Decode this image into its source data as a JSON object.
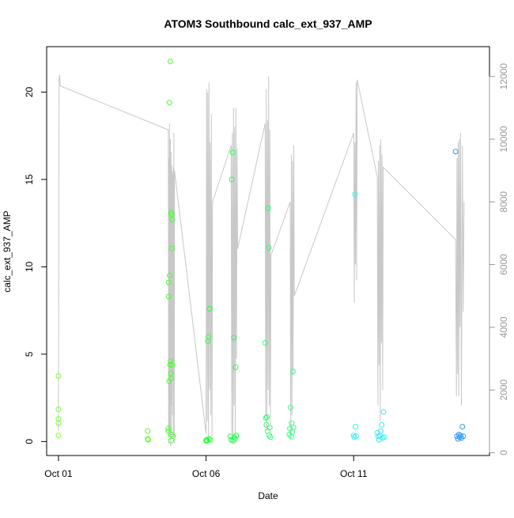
{
  "chart_data": {
    "type": "scatter",
    "title": "ATOM3 Southbound calc_ext_937_AMP",
    "xlabel": "Date",
    "ylabel": "calc_ext_937_AMP",
    "x_unit": "day",
    "x_ticks": [
      {
        "value": 1,
        "label": "Oct 01"
      },
      {
        "value": 6,
        "label": "Oct 06"
      },
      {
        "value": 11,
        "label": "Oct 11"
      }
    ],
    "xlim": [
      0.6,
      15.6
    ],
    "ylim": [
      -0.8,
      22.6
    ],
    "y_ticks": [
      0,
      5,
      10,
      15,
      20
    ],
    "y2lim": [
      -90,
      12950
    ],
    "y2_ticks": [
      0,
      2000,
      4000,
      6000,
      8000,
      10000,
      12000
    ],
    "grid": false,
    "legend": "none",
    "points": [
      {
        "x": 1.0,
        "y": 3.75,
        "color": "#7dff3a"
      },
      {
        "x": 1.0,
        "y": 1.85,
        "color": "#7dff3a"
      },
      {
        "x": 1.0,
        "y": 1.3,
        "color": "#7dff3a"
      },
      {
        "x": 1.0,
        "y": 1.05,
        "color": "#7dff3a"
      },
      {
        "x": 1.0,
        "y": 0.35,
        "color": "#7dff3a"
      },
      {
        "x": 4.02,
        "y": 0.6,
        "color": "#5cff2e"
      },
      {
        "x": 4.02,
        "y": 0.15,
        "color": "#5cff2e"
      },
      {
        "x": 4.04,
        "y": 0.1,
        "color": "#5cff2e"
      },
      {
        "x": 4.72,
        "y": 0.75,
        "color": "#48ff30"
      },
      {
        "x": 4.72,
        "y": 0.6,
        "color": "#48ff30"
      },
      {
        "x": 4.73,
        "y": 8.3,
        "color": "#48ff30"
      },
      {
        "x": 4.73,
        "y": 9.1,
        "color": "#48ff30"
      },
      {
        "x": 4.75,
        "y": 3.45,
        "color": "#48ff30"
      },
      {
        "x": 4.76,
        "y": 19.4,
        "color": "#48ff30"
      },
      {
        "x": 4.77,
        "y": 9.5,
        "color": "#48ff30"
      },
      {
        "x": 4.78,
        "y": 4.4,
        "color": "#48ff30"
      },
      {
        "x": 4.79,
        "y": 21.75,
        "color": "#48ff30"
      },
      {
        "x": 4.8,
        "y": 4.6,
        "color": "#48ff30"
      },
      {
        "x": 4.8,
        "y": 3.9,
        "color": "#48ff30"
      },
      {
        "x": 4.81,
        "y": 13.1,
        "color": "#48ff30"
      },
      {
        "x": 4.81,
        "y": 3.6,
        "color": "#48ff30"
      },
      {
        "x": 4.82,
        "y": 0.4,
        "color": "#48ff30"
      },
      {
        "x": 4.82,
        "y": 0.05,
        "color": "#48ff30"
      },
      {
        "x": 4.83,
        "y": 13.0,
        "color": "#48ff30"
      },
      {
        "x": 4.84,
        "y": 11.05,
        "color": "#48ff30"
      },
      {
        "x": 4.85,
        "y": 4.4,
        "color": "#48ff30"
      },
      {
        "x": 4.86,
        "y": 12.7,
        "color": "#48ff30"
      },
      {
        "x": 4.88,
        "y": 0.3,
        "color": "#48ff30"
      },
      {
        "x": 6.0,
        "y": 0.05,
        "color": "#2bff3c"
      },
      {
        "x": 6.02,
        "y": 0.1,
        "color": "#2bff3c"
      },
      {
        "x": 6.04,
        "y": 0.05,
        "color": "#2bff3c"
      },
      {
        "x": 6.06,
        "y": 5.75,
        "color": "#2bff3c"
      },
      {
        "x": 6.08,
        "y": 6.0,
        "color": "#2bff3c"
      },
      {
        "x": 6.1,
        "y": 0.15,
        "color": "#2bff3c"
      },
      {
        "x": 6.12,
        "y": 7.6,
        "color": "#2bff3c"
      },
      {
        "x": 6.15,
        "y": 0.1,
        "color": "#2bff3c"
      },
      {
        "x": 6.82,
        "y": 0.3,
        "color": "#26ff4b"
      },
      {
        "x": 6.85,
        "y": 0.1,
        "color": "#26ff4b"
      },
      {
        "x": 6.87,
        "y": 15.0,
        "color": "#26ff4b"
      },
      {
        "x": 6.9,
        "y": 16.55,
        "color": "#26ff4b"
      },
      {
        "x": 6.92,
        "y": 0.05,
        "color": "#26ff4b"
      },
      {
        "x": 6.94,
        "y": 5.95,
        "color": "#26ff4b"
      },
      {
        "x": 6.96,
        "y": 0.25,
        "color": "#26ff4b"
      },
      {
        "x": 6.98,
        "y": 0.15,
        "color": "#26ff4b"
      },
      {
        "x": 7.0,
        "y": 4.25,
        "color": "#26ff4b"
      },
      {
        "x": 7.02,
        "y": 0.35,
        "color": "#26ff4b"
      },
      {
        "x": 8.0,
        "y": 5.65,
        "color": "#30ff70"
      },
      {
        "x": 8.02,
        "y": 1.35,
        "color": "#30ff70"
      },
      {
        "x": 8.04,
        "y": 0.95,
        "color": "#30ff70"
      },
      {
        "x": 8.06,
        "y": 1.4,
        "color": "#30ff70"
      },
      {
        "x": 8.08,
        "y": 0.6,
        "color": "#30ff70"
      },
      {
        "x": 8.1,
        "y": 13.35,
        "color": "#30ff70"
      },
      {
        "x": 8.12,
        "y": 11.1,
        "color": "#30ff70"
      },
      {
        "x": 8.14,
        "y": 0.35,
        "color": "#30ff70"
      },
      {
        "x": 8.16,
        "y": 0.8,
        "color": "#30ff70"
      },
      {
        "x": 8.18,
        "y": 0.25,
        "color": "#30ff70"
      },
      {
        "x": 8.82,
        "y": 0.4,
        "color": "#34ff84"
      },
      {
        "x": 8.84,
        "y": 0.75,
        "color": "#34ff84"
      },
      {
        "x": 8.86,
        "y": 1.95,
        "color": "#34ff84"
      },
      {
        "x": 8.88,
        "y": 0.3,
        "color": "#34ff84"
      },
      {
        "x": 8.9,
        "y": 1.05,
        "color": "#34ff84"
      },
      {
        "x": 8.92,
        "y": 0.55,
        "color": "#34ff84"
      },
      {
        "x": 8.94,
        "y": 4.0,
        "color": "#34ff84"
      },
      {
        "x": 8.96,
        "y": 0.8,
        "color": "#34ff84"
      },
      {
        "x": 11.0,
        "y": 0.35,
        "color": "#36f5f0"
      },
      {
        "x": 11.02,
        "y": 0.25,
        "color": "#36f5f0"
      },
      {
        "x": 11.04,
        "y": 14.15,
        "color": "#36f5f0"
      },
      {
        "x": 11.06,
        "y": 0.85,
        "color": "#36f5f0"
      },
      {
        "x": 11.08,
        "y": 0.3,
        "color": "#36f5f0"
      },
      {
        "x": 11.8,
        "y": 0.5,
        "color": "#3ae8f2"
      },
      {
        "x": 11.83,
        "y": 0.3,
        "color": "#3ae8f2"
      },
      {
        "x": 11.86,
        "y": 0.1,
        "color": "#3ae8f2"
      },
      {
        "x": 11.89,
        "y": 0.35,
        "color": "#3ae8f2"
      },
      {
        "x": 11.92,
        "y": 0.6,
        "color": "#3ae8f2"
      },
      {
        "x": 11.95,
        "y": 0.95,
        "color": "#3ae8f2"
      },
      {
        "x": 11.98,
        "y": 0.2,
        "color": "#3ae8f2"
      },
      {
        "x": 12.01,
        "y": 1.7,
        "color": "#3ae8f2"
      },
      {
        "x": 12.04,
        "y": 0.25,
        "color": "#3ae8f2"
      },
      {
        "x": 14.45,
        "y": 16.6,
        "color": "#2f9bf0"
      },
      {
        "x": 14.5,
        "y": 0.3,
        "color": "#2f9bf0"
      },
      {
        "x": 14.53,
        "y": 0.15,
        "color": "#2f9bf0"
      },
      {
        "x": 14.56,
        "y": 0.4,
        "color": "#2f9bf0"
      },
      {
        "x": 14.59,
        "y": 0.25,
        "color": "#2f9bf0"
      },
      {
        "x": 14.62,
        "y": 0.35,
        "color": "#2f9bf0"
      },
      {
        "x": 14.65,
        "y": 0.2,
        "color": "#2f9bf0"
      },
      {
        "x": 14.68,
        "y": 0.85,
        "color": "#2f9bf0"
      },
      {
        "x": 14.71,
        "y": 0.3,
        "color": "#2f9bf0"
      }
    ],
    "line_series": {
      "color": "#c8c8c8",
      "axis": "right",
      "x": [
        1.0,
        1.02,
        1.04,
        1.06,
        4.72,
        4.73,
        4.74,
        4.75,
        4.76,
        4.77,
        4.78,
        4.79,
        4.8,
        4.81,
        4.82,
        4.83,
        4.84,
        4.85,
        4.86,
        4.87,
        4.88,
        4.89,
        4.9,
        4.91,
        4.92,
        4.93,
        6.0,
        6.02,
        6.04,
        6.06,
        6.08,
        6.1,
        6.12,
        6.14,
        6.16,
        6.18,
        6.2,
        6.22,
        6.85,
        6.87,
        6.89,
        6.91,
        6.93,
        6.95,
        6.97,
        6.99,
        7.01,
        7.03,
        7.05,
        7.07,
        8.0,
        8.02,
        8.04,
        8.06,
        8.08,
        8.1,
        8.12,
        8.14,
        8.16,
        8.18,
        8.2,
        8.85,
        8.87,
        8.89,
        8.91,
        8.93,
        8.95,
        8.97,
        8.99,
        11.0,
        11.02,
        11.04,
        11.06,
        11.08,
        11.1,
        11.12,
        11.8,
        11.82,
        11.84,
        11.86,
        11.88,
        11.9,
        11.92,
        11.94,
        11.96,
        11.98,
        12.0,
        14.45,
        14.48,
        14.5,
        14.52,
        14.54,
        14.56,
        14.58,
        14.6,
        14.62,
        14.65,
        14.68,
        14.71,
        14.74
      ],
      "y": [
        700,
        11900,
        12050,
        11700,
        10300,
        300,
        9400,
        600,
        10500,
        500,
        9800,
        10000,
        200,
        9600,
        1500,
        9200,
        500,
        9000,
        1200,
        8900,
        2500,
        9100,
        500,
        10200,
        300,
        9000,
        600,
        11600,
        1000,
        11500,
        300,
        11800,
        2000,
        9900,
        1200,
        10800,
        500,
        8000,
        9800,
        600,
        10200,
        300,
        11000,
        1500,
        10400,
        500,
        11000,
        3000,
        9700,
        6500,
        10500,
        1200,
        11600,
        700,
        10600,
        2000,
        12000,
        1500,
        10300,
        900,
        6300,
        8000,
        400,
        9500,
        1200,
        9300,
        2500,
        9800,
        5000,
        10200,
        4800,
        9900,
        6000,
        11800,
        5500,
        11900,
        8800,
        1500,
        9300,
        2800,
        9800,
        1000,
        10000,
        3500,
        9500,
        2000,
        9100,
        6800,
        1800,
        9400,
        2500,
        9900,
        1800,
        10000,
        4000,
        10200,
        1500,
        9800,
        4500,
        8000
      ]
    }
  }
}
